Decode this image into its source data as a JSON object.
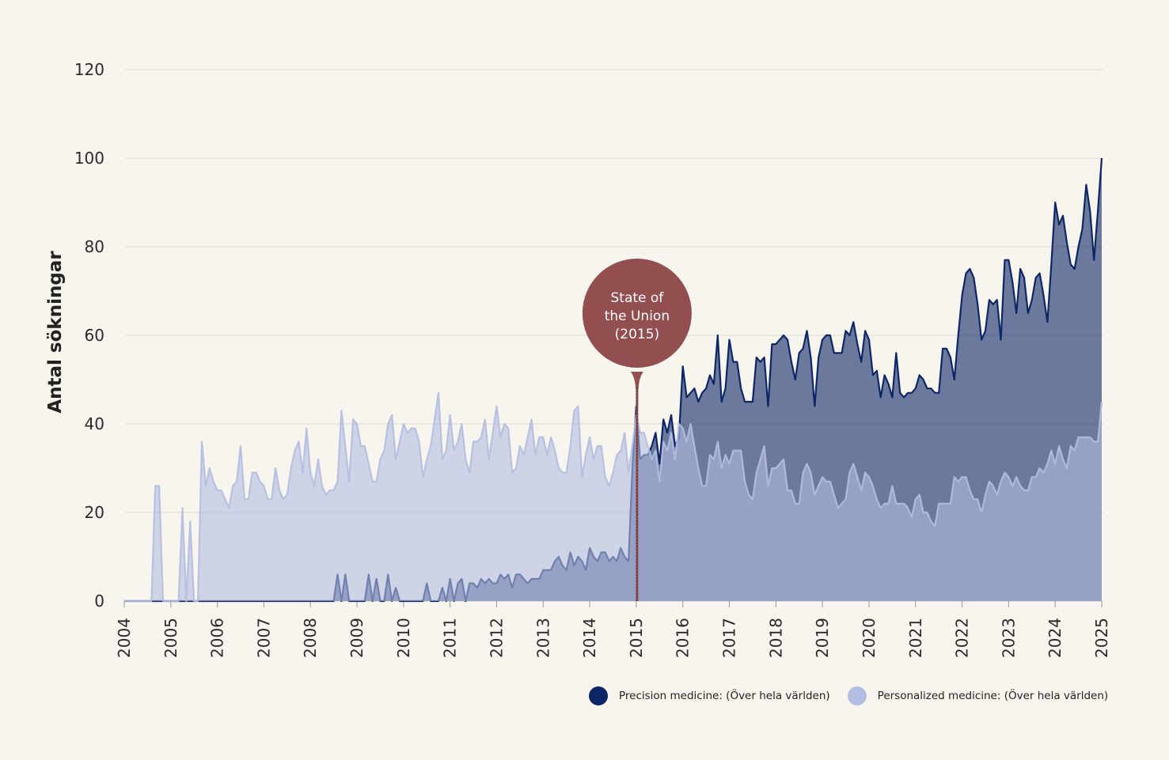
{
  "chart_data": {
    "type": "area",
    "ylabel": "Antal sökningar",
    "xlabel": "",
    "ylim": [
      0,
      120
    ],
    "yticks": [
      0,
      20,
      40,
      60,
      80,
      100,
      120
    ],
    "xlim": [
      "2004-01",
      "2025-01"
    ],
    "xticks": [
      "2004",
      "2005",
      "2006",
      "2007",
      "2008",
      "2009",
      "2010",
      "2011",
      "2012",
      "2013",
      "2014",
      "2015",
      "2016",
      "2017",
      "2018",
      "2019",
      "2020",
      "2021",
      "2022",
      "2023",
      "2024",
      "2025"
    ],
    "x_start": "2004-01",
    "x_interval": "month",
    "grid": true,
    "legend_position": "bottom-right",
    "annotation": {
      "lines": [
        "State of",
        "the Union",
        "(2015)"
      ],
      "x": "2015-01"
    },
    "series": [
      {
        "name": "Precision medicine: (Över hela världen)",
        "color": "#0d2766",
        "values": [
          0,
          0,
          0,
          0,
          0,
          0,
          0,
          0,
          0,
          0,
          0,
          0,
          0,
          0,
          0,
          0,
          0,
          0,
          0,
          0,
          0,
          0,
          0,
          0,
          0,
          0,
          0,
          0,
          0,
          0,
          0,
          0,
          0,
          0,
          0,
          0,
          0,
          0,
          0,
          0,
          0,
          0,
          0,
          0,
          0,
          0,
          0,
          0,
          0,
          0,
          0,
          0,
          0,
          0,
          0,
          6,
          0,
          6,
          0,
          0,
          0,
          0,
          0,
          6,
          0,
          5,
          0,
          0,
          6,
          0,
          3,
          0,
          0,
          0,
          0,
          0,
          0,
          0,
          4,
          0,
          0,
          0,
          3,
          0,
          5,
          0,
          4,
          5,
          0,
          4,
          4,
          3,
          5,
          4,
          5,
          4,
          4,
          6,
          5,
          6,
          3,
          6,
          6,
          5,
          4,
          5,
          5,
          5,
          7,
          7,
          7,
          9,
          10,
          8,
          7,
          11,
          8,
          10,
          9,
          7,
          12,
          10,
          9,
          11,
          11,
          9,
          10,
          9,
          12,
          10,
          9,
          30,
          44,
          32,
          33,
          33,
          35,
          38,
          31,
          41,
          38,
          42,
          35,
          37,
          53,
          46,
          47,
          48,
          45,
          47,
          48,
          51,
          49,
          60,
          45,
          48,
          59,
          54,
          54,
          48,
          45,
          45,
          45,
          55,
          54,
          55,
          44,
          58,
          58,
          59,
          60,
          59,
          54,
          50,
          56,
          57,
          61,
          55,
          44,
          55,
          59,
          60,
          60,
          56,
          56,
          56,
          61,
          60,
          63,
          58,
          54,
          61,
          59,
          51,
          52,
          46,
          51,
          49,
          46,
          56,
          47,
          46,
          47,
          47,
          48,
          51,
          50,
          48,
          48,
          47,
          47,
          57,
          57,
          55,
          50,
          60,
          69,
          74,
          75,
          73,
          67,
          59,
          61,
          68,
          67,
          68,
          59,
          77,
          77,
          72,
          65,
          75,
          73,
          65,
          68,
          73,
          74,
          69,
          63,
          76,
          90,
          85,
          87,
          81,
          76,
          75,
          80,
          84,
          94,
          88,
          77,
          88,
          100
        ]
      },
      {
        "name": "Personalized medicine: (Över hela världen)",
        "color": "#b2bee1",
        "values": [
          0,
          0,
          0,
          0,
          0,
          0,
          0,
          0,
          26,
          26,
          0,
          0,
          0,
          0,
          0,
          21,
          0,
          18,
          0,
          0,
          36,
          26,
          30,
          27,
          25,
          25,
          23,
          21,
          26,
          27,
          35,
          23,
          23,
          29,
          29,
          27,
          26,
          23,
          23,
          30,
          25,
          23,
          24,
          30,
          34,
          36,
          29,
          39,
          29,
          26,
          32,
          26,
          24,
          25,
          25,
          27,
          43,
          35,
          27,
          41,
          40,
          35,
          35,
          31,
          27,
          27,
          32,
          34,
          40,
          42,
          32,
          36,
          40,
          38,
          39,
          39,
          36,
          28,
          32,
          35,
          41,
          47,
          32,
          34,
          42,
          34,
          36,
          40,
          32,
          29,
          36,
          36,
          37,
          41,
          32,
          38,
          44,
          37,
          40,
          39,
          29,
          30,
          35,
          33,
          37,
          41,
          33,
          37,
          37,
          33,
          37,
          34,
          30,
          29,
          29,
          35,
          43,
          44,
          28,
          33,
          37,
          32,
          35,
          35,
          28,
          26,
          29,
          33,
          34,
          38,
          29,
          35,
          42,
          38,
          38,
          35,
          32,
          34,
          27,
          36,
          34,
          38,
          32,
          40,
          39,
          36,
          40,
          35,
          30,
          26,
          26,
          33,
          32,
          36,
          30,
          33,
          31,
          34,
          34,
          34,
          27,
          24,
          23,
          29,
          32,
          35,
          26,
          30,
          30,
          31,
          32,
          25,
          25,
          22,
          22,
          29,
          31,
          29,
          24,
          26,
          28,
          27,
          27,
          24,
          21,
          22,
          23,
          29,
          31,
          28,
          25,
          29,
          28,
          26,
          23,
          21,
          22,
          22,
          26,
          22,
          22,
          22,
          21,
          19,
          23,
          24,
          20,
          20,
          18,
          17,
          22,
          22,
          22,
          22,
          28,
          27,
          28,
          28,
          25,
          23,
          23,
          20,
          24,
          27,
          26,
          24,
          27,
          29,
          28,
          26,
          28,
          26,
          25,
          25,
          28,
          28,
          30,
          29,
          31,
          34,
          31,
          35,
          32,
          30,
          35,
          34,
          37,
          37,
          37,
          37,
          36,
          36,
          45
        ]
      }
    ]
  }
}
